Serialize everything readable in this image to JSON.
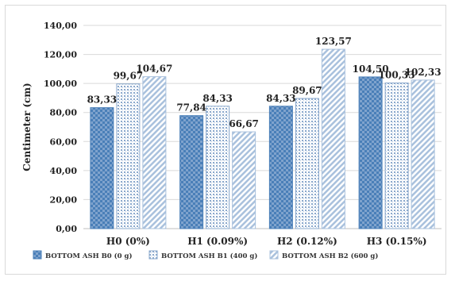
{
  "chart_data": {
    "type": "bar",
    "title": "",
    "xlabel": "",
    "ylabel": "Centimeter (cm)",
    "ylim": [
      0,
      140
    ],
    "ytick_step": 20,
    "ytick_labels": [
      "0,00",
      "20,00",
      "40,00",
      "60,00",
      "80,00",
      "100,00",
      "120,00",
      "140,00"
    ],
    "grid": true,
    "legend_position": "bottom",
    "categories": [
      "H0 (0%)",
      "H1 (0.09%)",
      "H2 (0.12%)",
      "H3 (0.15%)"
    ],
    "series": [
      {
        "name": "BOTTOM ASH B0 (0 g)",
        "values": [
          83.33,
          77.84,
          84.33,
          104.5
        ],
        "labels": [
          "83,33",
          "77,84",
          "84,33",
          "104,50"
        ],
        "color": "#4a7fb8",
        "pattern": "checker"
      },
      {
        "name": "BOTTOM ASH B1 (400 g)",
        "values": [
          99.67,
          84.33,
          89.67,
          100.33
        ],
        "labels": [
          "99,67",
          "84,33",
          "89,67",
          "100,33"
        ],
        "color": "#8aa8cc",
        "pattern": "dots"
      },
      {
        "name": "BOTTOM ASH B2 (600 g)",
        "values": [
          104.67,
          66.67,
          123.57,
          102.33
        ],
        "labels": [
          "104,67",
          "66,67",
          "123,57",
          "102,33"
        ],
        "color": "#a9c1dd",
        "pattern": "diagonal"
      }
    ]
  }
}
